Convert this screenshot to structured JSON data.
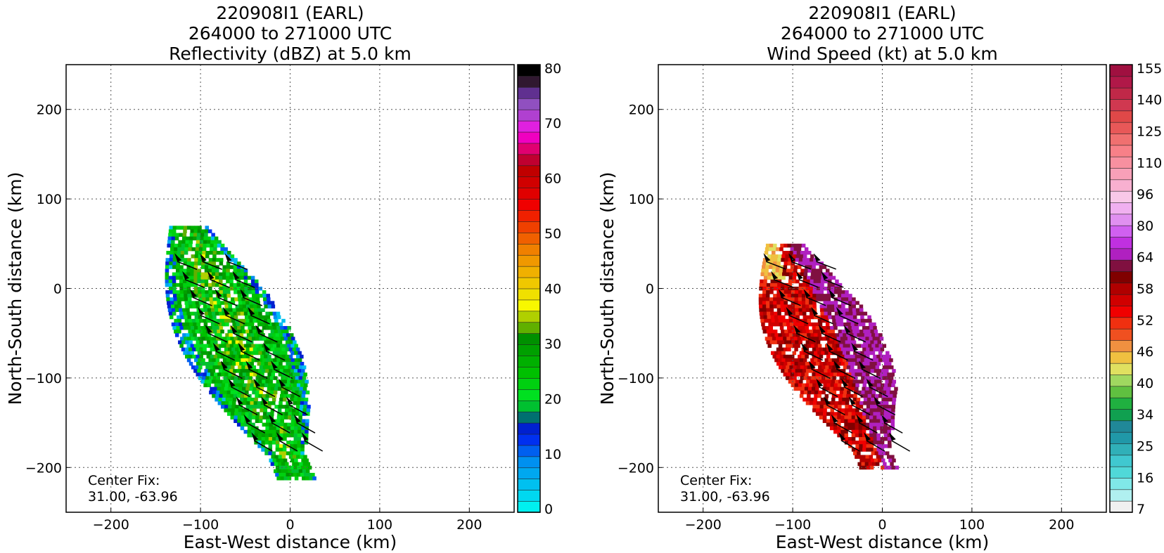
{
  "chart_data": [
    {
      "type": "heatmap",
      "title_lines": [
        "220908I1 (EARL)",
        "264000 to 271000 UTC",
        "Reflectivity (dBZ) at 5.0 km"
      ],
      "xlabel": "East-West distance (km)",
      "ylabel": "North-South distance (km)",
      "xlim": [
        -250,
        250
      ],
      "ylim": [
        -250,
        250
      ],
      "xticks": [
        -200,
        -100,
        0,
        100,
        200
      ],
      "yticks": [
        -200,
        -100,
        0,
        100,
        200
      ],
      "grid": true,
      "annotation": [
        "Center Fix:",
        "31.00, -63.96"
      ],
      "colorbar": {
        "ticks": [
          "0",
          "10",
          "20",
          "30",
          "40",
          "50",
          "60",
          "70",
          "80"
        ],
        "colors": [
          "#00f0f0",
          "#00d8f0",
          "#00c0f0",
          "#00a8f0",
          "#0090f0",
          "#0060f0",
          "#0030f0",
          "#0020d0",
          "#007070",
          "#00c030",
          "#00e020",
          "#00d010",
          "#00c000",
          "#00b000",
          "#00a000",
          "#009000",
          "#60b000",
          "#b0d000",
          "#f8f800",
          "#f0e000",
          "#f0c800",
          "#f0b000",
          "#f09800",
          "#f08000",
          "#f06000",
          "#f04000",
          "#f02000",
          "#f00000",
          "#e00000",
          "#d00000",
          "#c00000",
          "#c00030",
          "#e00070",
          "#f000c0",
          "#e020e0",
          "#b040d0",
          "#9050c0",
          "#603090",
          "#301830",
          "#000000"
        ]
      },
      "observed_extent": {
        "x": [
          -135,
          40
        ],
        "y": [
          -210,
          70
        ]
      },
      "barb_rows_y": [
        30,
        10,
        -10,
        -30,
        -50,
        -70,
        -90,
        -110,
        -130,
        -150,
        -170
      ]
    },
    {
      "type": "heatmap",
      "title_lines": [
        "220908I1 (EARL)",
        "264000 to 271000 UTC",
        "Wind Speed (kt) at 5.0 km"
      ],
      "xlabel": "East-West distance (km)",
      "ylabel": "North-South distance (km)",
      "xlim": [
        -250,
        250
      ],
      "ylim": [
        -250,
        250
      ],
      "xticks": [
        -200,
        -100,
        0,
        100,
        200
      ],
      "yticks": [
        -200,
        -100,
        0,
        100,
        200
      ],
      "grid": true,
      "annotation": [
        "Center Fix:",
        "31.00, -63.96"
      ],
      "colorbar": {
        "ticks": [
          "7",
          "16",
          "25",
          "34",
          "40",
          "46",
          "52",
          "58",
          "64",
          "80",
          "96",
          "110",
          "125",
          "140",
          "155"
        ],
        "colors": [
          "#f0f0f0",
          "#b0f0f0",
          "#80e8e8",
          "#50d8d8",
          "#40c8d0",
          "#30b0b8",
          "#2098a8",
          "#208898",
          "#10a050",
          "#20b040",
          "#60c040",
          "#a0d860",
          "#e0e060",
          "#f0c040",
          "#f09040",
          "#f05020",
          "#f03010",
          "#f00000",
          "#d00000",
          "#b00000",
          "#800000",
          "#801040",
          "#b020c0",
          "#c030e0",
          "#d060f0",
          "#e090f0",
          "#f0b0f0",
          "#f8c8e8",
          "#f8b0d0",
          "#f8a0b8",
          "#f890a0",
          "#f88088",
          "#f07070",
          "#e85858",
          "#e04848",
          "#d03850",
          "#c02848",
          "#b01848",
          "#a01040"
        ]
      },
      "observed_extent": {
        "x": [
          -130,
          30
        ],
        "y": [
          -200,
          50
        ]
      },
      "barb_rows_y": [
        30,
        10,
        -10,
        -30,
        -50,
        -70,
        -90,
        -110,
        -130,
        -150,
        -170
      ]
    }
  ]
}
